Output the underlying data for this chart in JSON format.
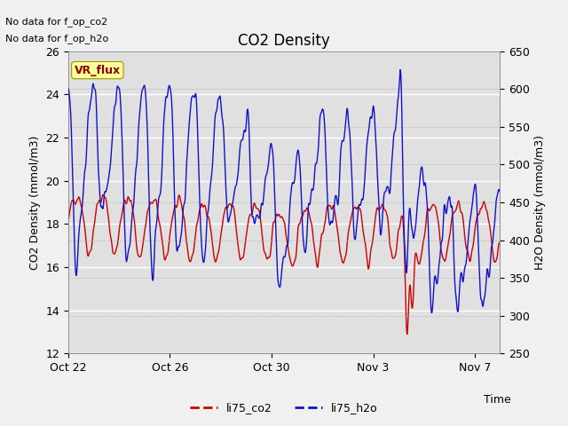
{
  "title": "CO2 Density",
  "xlabel": "Time",
  "ylabel_left": "CO2 Density (mmol/m3)",
  "ylabel_right": "H2O Density (mmol/m3)",
  "ylim_left": [
    12,
    26
  ],
  "ylim_right": [
    250,
    650
  ],
  "no_data_text": [
    "No data for f_op_co2",
    "No data for f_op_h2o"
  ],
  "vr_flux_label": "VR_flux",
  "legend_labels": [
    "li75_co2",
    "li75_h2o"
  ],
  "line_colors": [
    "#cc0000",
    "#1111cc"
  ],
  "xtick_labels": [
    "Oct 22",
    "Oct 26",
    "Oct 30",
    "Nov 3",
    "Nov 7"
  ],
  "fig_bg_color": "#f0f0f0",
  "plot_bg_color": "#e0e0e0",
  "grid_color": "#ffffff",
  "right_grid_color": "#bbbbbb",
  "seed": 42
}
